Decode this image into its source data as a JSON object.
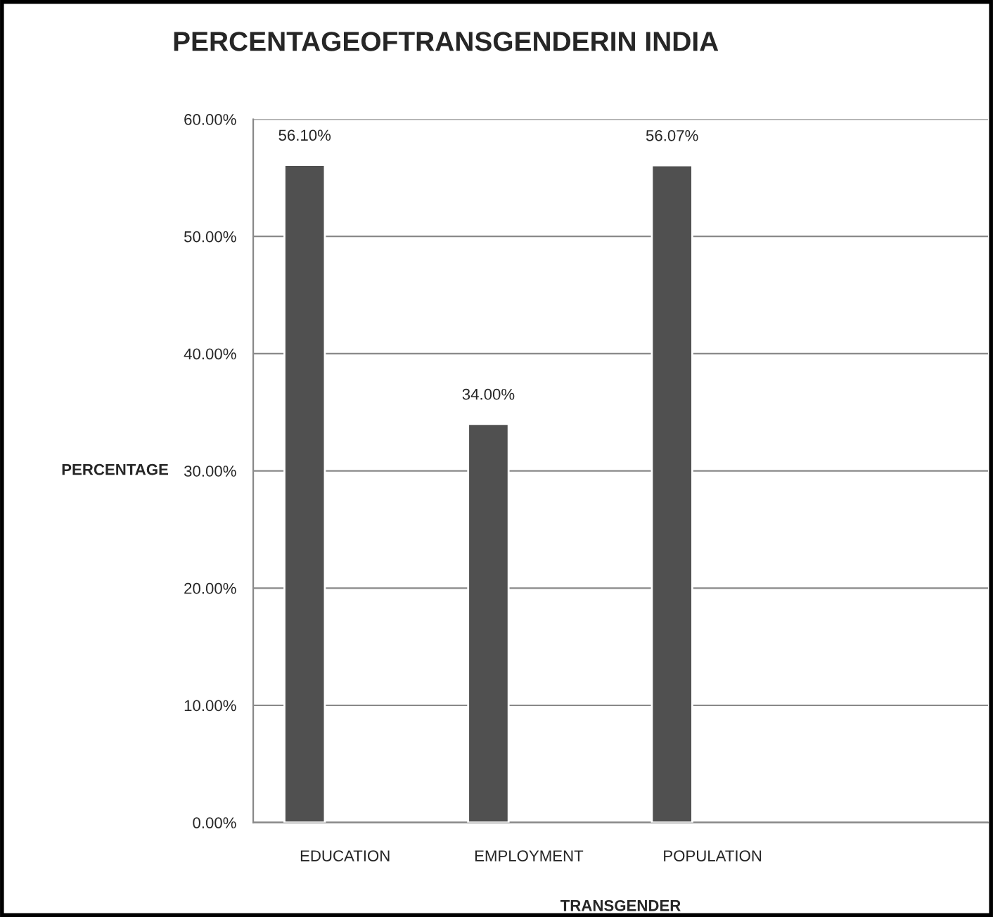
{
  "chart_data": {
    "type": "bar",
    "title": "PERCENTAGEOFTRANSGENDERIN INDIA",
    "xlabel": "TRANSGENDER",
    "ylabel": "PERCENTAGE",
    "categories": [
      "EDUCATION",
      "EMPLOYMENT",
      "POPULATION",
      null
    ],
    "values": [
      56.1,
      34.0,
      56.07,
      null
    ],
    "value_labels": [
      "56.10%",
      "34.00%",
      "56.07%",
      null
    ],
    "color": "#505050",
    "ylim": [
      0,
      60
    ],
    "yticks": [
      {
        "value": 0,
        "label": "0.00%"
      },
      {
        "value": 10,
        "label": "10.00%"
      },
      {
        "value": 20,
        "label": "20.00%"
      },
      {
        "value": 30,
        "label": "30.00%"
      },
      {
        "value": 40,
        "label": "40.00%"
      },
      {
        "value": 50,
        "label": "50.00%"
      },
      {
        "value": 60,
        "label": "60.00%"
      }
    ],
    "grid": "y",
    "legend": false
  }
}
